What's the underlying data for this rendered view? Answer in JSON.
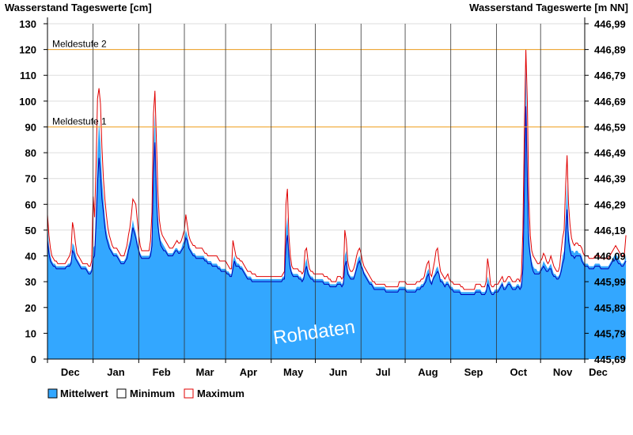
{
  "chart_data": {
    "type": "area",
    "title_left": "Wasserstand Tageswerte [cm]",
    "title_right": "Wasserstand Tageswerte [m NN]",
    "watermark": "Rohdaten",
    "ylim": [
      0,
      130
    ],
    "yticks": [
      0,
      10,
      20,
      30,
      40,
      50,
      60,
      70,
      80,
      90,
      100,
      110,
      120,
      130
    ],
    "yticks_right": [
      "445,69",
      "445,79",
      "445,89",
      "445,99",
      "446,09",
      "446,19",
      "446,29",
      "446,39",
      "446,49",
      "446,59",
      "446,69",
      "446,79",
      "446,89",
      "446,99"
    ],
    "x_days": 365,
    "month_boundaries": [
      0,
      31,
      62,
      93,
      121,
      152,
      182,
      213,
      243,
      274,
      305,
      335,
      365
    ],
    "month_labels": [
      "Dec",
      "Jan",
      "Feb",
      "Mar",
      "Apr",
      "May",
      "Jun",
      "Jul",
      "Aug",
      "Sep",
      "Oct",
      "Nov",
      "Dec"
    ],
    "thresholds": [
      {
        "label": "Meldestufe 2",
        "value": 120,
        "color": "#f0a020"
      },
      {
        "label": "Meldestufe 1",
        "value": 90,
        "color": "#f0a020"
      }
    ],
    "legend": [
      {
        "label": "Mittelwert",
        "color": "#33a7ff"
      },
      {
        "label": "Minimum",
        "color": "#ffffff"
      },
      {
        "label": "Maximum",
        "color": "#ffffff"
      }
    ],
    "colors": {
      "mean_fill": "#33a7ff",
      "min_line": "#0000b4",
      "max_line": "#e00000",
      "grid": "#dddddd",
      "threshold": "#f0a020"
    },
    "series": [
      {
        "name": "Mittelwert",
        "values": [
          52,
          44,
          40,
          38,
          37,
          37,
          36,
          36,
          36,
          36,
          36,
          36,
          36,
          36,
          37,
          37,
          38,
          45,
          44,
          41,
          39,
          38,
          37,
          36,
          36,
          36,
          36,
          35,
          34,
          34,
          35,
          43,
          44,
          60,
          80,
          92,
          84,
          70,
          63,
          55,
          50,
          47,
          45,
          43,
          42,
          41,
          41,
          41,
          40,
          39,
          38,
          38,
          38,
          39,
          41,
          44,
          46,
          50,
          54,
          51,
          49,
          46,
          43,
          41,
          40,
          40,
          40,
          40,
          40,
          40,
          42,
          48,
          82,
          95,
          71,
          56,
          49,
          46,
          45,
          44,
          43,
          42,
          41,
          41,
          41,
          41,
          42,
          43,
          43,
          42,
          42,
          43,
          45,
          46,
          50,
          48,
          45,
          43,
          42,
          41,
          41,
          40,
          40,
          40,
          40,
          40,
          40,
          39,
          39,
          38,
          38,
          38,
          37,
          37,
          37,
          37,
          36,
          36,
          35,
          35,
          35,
          35,
          34,
          34,
          33,
          33,
          38,
          40,
          38,
          37,
          37,
          36,
          36,
          35,
          34,
          33,
          32,
          32,
          32,
          31,
          31,
          31,
          31,
          31,
          31,
          31,
          31,
          31,
          31,
          31,
          31,
          31,
          31,
          31,
          31,
          31,
          31,
          31,
          31,
          31,
          32,
          32,
          50,
          55,
          43,
          37,
          34,
          33,
          33,
          33,
          33,
          32,
          32,
          31,
          32,
          37,
          39,
          35,
          33,
          32,
          32,
          31,
          31,
          31,
          31,
          31,
          31,
          31,
          30,
          30,
          30,
          30,
          29,
          29,
          29,
          29,
          29,
          30,
          30,
          30,
          29,
          30,
          40,
          42,
          35,
          33,
          32,
          32,
          32,
          34,
          37,
          39,
          40,
          38,
          36,
          34,
          33,
          32,
          31,
          30,
          30,
          29,
          28,
          28,
          28,
          28,
          28,
          28,
          28,
          28,
          27,
          27,
          27,
          27,
          27,
          27,
          27,
          27,
          27,
          28,
          28,
          28,
          28,
          28,
          27,
          27,
          27,
          27,
          27,
          27,
          27,
          28,
          28,
          28,
          29,
          29,
          30,
          32,
          34,
          35,
          31,
          30,
          32,
          33,
          35,
          36,
          34,
          31,
          31,
          30,
          29,
          30,
          30,
          29,
          28,
          28,
          27,
          27,
          27,
          27,
          27,
          26,
          26,
          26,
          26,
          26,
          26,
          26,
          26,
          26,
          26,
          27,
          27,
          27,
          27,
          26,
          26,
          26,
          27,
          32,
          30,
          27,
          26,
          26,
          27,
          27,
          27,
          28,
          29,
          30,
          28,
          28,
          29,
          30,
          30,
          29,
          28,
          28,
          28,
          29,
          29,
          28,
          30,
          40,
          80,
          115,
          80,
          50,
          42,
          38,
          36,
          35,
          35,
          34,
          34,
          35,
          36,
          38,
          37,
          36,
          35,
          36,
          37,
          35,
          33,
          33,
          32,
          32,
          33,
          36,
          40,
          42,
          55,
          68,
          50,
          45,
          42,
          42,
          41,
          42,
          42,
          41,
          41,
          40,
          38,
          37,
          37,
          37,
          36,
          36,
          36,
          36,
          37,
          37,
          37,
          37,
          36,
          36,
          36,
          36,
          36,
          36,
          37,
          38,
          39,
          40,
          41,
          40,
          39,
          38,
          37,
          37,
          38,
          40
        ]
      },
      {
        "name": "Minimum",
        "values": [
          46,
          41,
          38,
          37,
          36,
          36,
          35,
          35,
          35,
          35,
          35,
          35,
          35,
          36,
          36,
          36,
          37,
          42,
          41,
          39,
          38,
          37,
          36,
          35,
          35,
          35,
          35,
          34,
          33,
          33,
          34,
          39,
          40,
          52,
          68,
          78,
          72,
          62,
          57,
          51,
          47,
          45,
          43,
          42,
          41,
          40,
          40,
          40,
          39,
          38,
          37,
          37,
          37,
          38,
          39,
          42,
          44,
          47,
          51,
          49,
          47,
          44,
          42,
          40,
          39,
          39,
          39,
          39,
          39,
          39,
          40,
          44,
          72,
          84,
          63,
          52,
          47,
          44,
          43,
          42,
          42,
          41,
          40,
          40,
          40,
          40,
          41,
          42,
          42,
          41,
          41,
          42,
          43,
          44,
          47,
          46,
          43,
          42,
          41,
          40,
          40,
          39,
          39,
          39,
          39,
          39,
          39,
          38,
          38,
          37,
          37,
          37,
          36,
          36,
          36,
          36,
          35,
          35,
          34,
          34,
          34,
          34,
          33,
          33,
          32,
          32,
          35,
          38,
          36,
          36,
          36,
          35,
          35,
          34,
          33,
          32,
          31,
          31,
          31,
          30,
          30,
          30,
          30,
          30,
          30,
          30,
          30,
          30,
          30,
          30,
          30,
          30,
          30,
          30,
          30,
          30,
          30,
          30,
          30,
          30,
          31,
          31,
          44,
          48,
          40,
          35,
          33,
          32,
          32,
          32,
          32,
          31,
          31,
          30,
          31,
          34,
          36,
          33,
          32,
          31,
          31,
          30,
          30,
          30,
          30,
          30,
          30,
          30,
          29,
          29,
          29,
          29,
          28,
          28,
          28,
          28,
          28,
          29,
          29,
          29,
          28,
          29,
          36,
          38,
          33,
          32,
          31,
          31,
          31,
          33,
          35,
          37,
          38,
          36,
          35,
          33,
          32,
          31,
          30,
          29,
          29,
          28,
          27,
          27,
          27,
          27,
          27,
          27,
          27,
          27,
          26,
          26,
          26,
          26,
          26,
          26,
          26,
          26,
          26,
          27,
          27,
          27,
          27,
          27,
          26,
          26,
          26,
          26,
          26,
          26,
          26,
          27,
          27,
          27,
          28,
          28,
          29,
          30,
          32,
          33,
          30,
          29,
          31,
          32,
          33,
          34,
          33,
          30,
          30,
          29,
          28,
          29,
          29,
          28,
          27,
          27,
          26,
          26,
          26,
          26,
          26,
          25,
          25,
          25,
          25,
          25,
          25,
          25,
          25,
          25,
          25,
          26,
          26,
          26,
          26,
          25,
          25,
          25,
          26,
          29,
          28,
          26,
          25,
          25,
          26,
          26,
          26,
          27,
          28,
          29,
          27,
          27,
          28,
          29,
          29,
          28,
          27,
          27,
          27,
          28,
          28,
          27,
          28,
          35,
          65,
          98,
          68,
          45,
          40,
          36,
          34,
          33,
          33,
          33,
          33,
          34,
          35,
          36,
          35,
          34,
          34,
          35,
          35,
          33,
          32,
          32,
          31,
          31,
          32,
          34,
          37,
          39,
          48,
          58,
          46,
          42,
          40,
          40,
          39,
          40,
          40,
          40,
          40,
          38,
          37,
          36,
          36,
          36,
          35,
          35,
          35,
          35,
          36,
          36,
          36,
          36,
          35,
          35,
          35,
          35,
          35,
          35,
          36,
          37,
          38,
          38,
          39,
          38,
          37,
          37,
          36,
          36,
          37,
          38
        ]
      },
      {
        "name": "Maximum",
        "values": [
          56,
          48,
          43,
          40,
          39,
          38,
          38,
          37,
          37,
          37,
          37,
          37,
          37,
          38,
          39,
          40,
          42,
          53,
          50,
          45,
          41,
          40,
          39,
          38,
          37,
          37,
          37,
          37,
          36,
          36,
          38,
          63,
          55,
          75,
          101,
          105,
          99,
          82,
          70,
          62,
          56,
          51,
          48,
          46,
          44,
          43,
          43,
          43,
          42,
          41,
          40,
          40,
          40,
          42,
          44,
          48,
          51,
          56,
          62,
          61,
          60,
          54,
          48,
          44,
          42,
          42,
          42,
          42,
          42,
          42,
          46,
          57,
          95,
          104,
          85,
          65,
          54,
          50,
          48,
          47,
          46,
          45,
          44,
          43,
          43,
          43,
          44,
          45,
          46,
          45,
          45,
          46,
          48,
          50,
          56,
          52,
          48,
          46,
          45,
          44,
          44,
          43,
          43,
          43,
          43,
          43,
          42,
          41,
          41,
          40,
          40,
          40,
          40,
          40,
          40,
          40,
          39,
          38,
          38,
          38,
          38,
          38,
          37,
          36,
          35,
          35,
          46,
          43,
          40,
          39,
          39,
          38,
          38,
          37,
          36,
          35,
          34,
          34,
          34,
          33,
          33,
          33,
          32,
          32,
          32,
          32,
          32,
          32,
          32,
          32,
          32,
          32,
          32,
          32,
          32,
          32,
          32,
          32,
          32,
          32,
          33,
          34,
          60,
          66,
          48,
          40,
          36,
          35,
          35,
          35,
          35,
          34,
          34,
          33,
          34,
          42,
          43,
          38,
          35,
          34,
          34,
          33,
          33,
          33,
          33,
          33,
          33,
          33,
          32,
          32,
          32,
          31,
          31,
          30,
          30,
          30,
          30,
          32,
          32,
          32,
          31,
          32,
          50,
          46,
          38,
          35,
          34,
          34,
          35,
          37,
          40,
          42,
          43,
          41,
          38,
          36,
          35,
          34,
          33,
          32,
          31,
          30,
          30,
          29,
          29,
          29,
          29,
          29,
          29,
          29,
          28,
          28,
          28,
          28,
          28,
          28,
          28,
          28,
          28,
          30,
          30,
          30,
          30,
          30,
          29,
          29,
          29,
          29,
          29,
          29,
          29,
          30,
          30,
          30,
          31,
          31,
          32,
          35,
          37,
          38,
          33,
          32,
          35,
          38,
          42,
          43,
          38,
          34,
          33,
          32,
          31,
          32,
          33,
          31,
          30,
          30,
          29,
          29,
          29,
          29,
          29,
          28,
          28,
          27,
          27,
          27,
          27,
          27,
          27,
          27,
          27,
          29,
          29,
          29,
          29,
          28,
          28,
          28,
          30,
          39,
          35,
          29,
          28,
          28,
          29,
          29,
          29,
          30,
          31,
          32,
          30,
          30,
          31,
          32,
          32,
          31,
          30,
          30,
          30,
          31,
          31,
          30,
          33,
          50,
          90,
          120,
          100,
          62,
          48,
          42,
          40,
          39,
          38,
          37,
          37,
          38,
          39,
          41,
          40,
          38,
          37,
          38,
          40,
          38,
          36,
          35,
          34,
          34,
          36,
          42,
          47,
          50,
          67,
          79,
          60,
          52,
          47,
          45,
          44,
          45,
          45,
          44,
          44,
          43,
          41,
          40,
          40,
          40,
          39,
          39,
          39,
          39,
          40,
          40,
          40,
          40,
          39,
          39,
          39,
          39,
          39,
          39,
          40,
          41,
          42,
          43,
          44,
          43,
          42,
          41,
          40,
          40,
          41,
          48
        ]
      }
    ]
  }
}
